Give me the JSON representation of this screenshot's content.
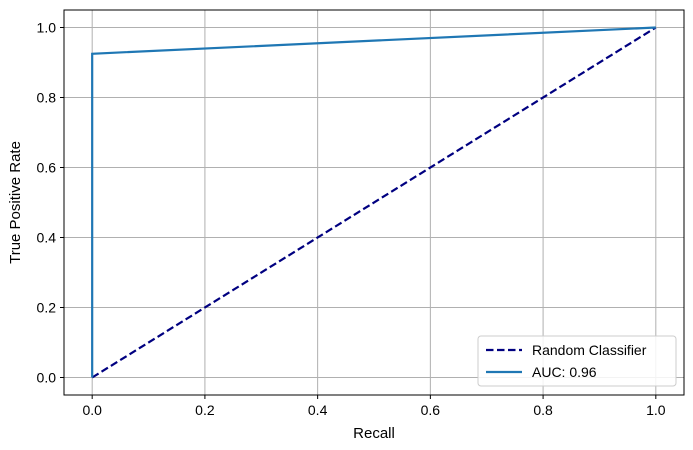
{
  "chart_data": {
    "type": "line",
    "title": "",
    "xlabel": "Recall",
    "ylabel": "True Positive Rate",
    "xlim": [
      -0.05,
      1.05
    ],
    "ylim": [
      -0.05,
      1.05
    ],
    "xticks": [
      0.0,
      0.2,
      0.4,
      0.6,
      0.8,
      1.0
    ],
    "xtick_labels": [
      "0.0",
      "0.2",
      "0.4",
      "0.6",
      "0.8",
      "1.0"
    ],
    "yticks": [
      0.0,
      0.2,
      0.4,
      0.6,
      0.8,
      1.0
    ],
    "ytick_labels": [
      "0.0",
      "0.2",
      "0.4",
      "0.6",
      "0.8",
      "1.0"
    ],
    "grid": true,
    "legend_position": "bottom-right",
    "series": [
      {
        "name": "Random Classifier",
        "style": "dashed",
        "color": "#000080",
        "x": [
          0.0,
          1.0
        ],
        "y": [
          0.0,
          1.0
        ]
      },
      {
        "name": "AUC: 0.96",
        "style": "solid",
        "color": "#1f77b4",
        "x": [
          0.0,
          0.0,
          1.0
        ],
        "y": [
          0.0,
          0.925,
          1.0
        ]
      }
    ]
  }
}
